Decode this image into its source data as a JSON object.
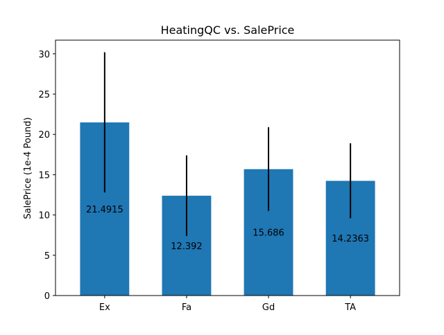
{
  "chart_data": {
    "type": "bar",
    "title": "HeatingQC vs. SalePrice",
    "xlabel": "",
    "ylabel": "SalePrice (1e-4 Pound)",
    "categories": [
      "Ex",
      "Fa",
      "Gd",
      "TA"
    ],
    "values": [
      21.4915,
      12.392,
      15.686,
      14.2363
    ],
    "value_labels": [
      "21.4915",
      "12.392",
      "15.686",
      "14.2363"
    ],
    "error_low": [
      12.8,
      7.4,
      10.5,
      9.6
    ],
    "error_high": [
      30.2,
      17.4,
      20.9,
      18.9
    ],
    "ylim": [
      0,
      31.7
    ],
    "yticks": [
      0,
      5,
      10,
      15,
      20,
      25,
      30
    ],
    "bar_color": "#1f77b4",
    "errorbar_color": "#000000",
    "grid": false,
    "legend": false
  }
}
